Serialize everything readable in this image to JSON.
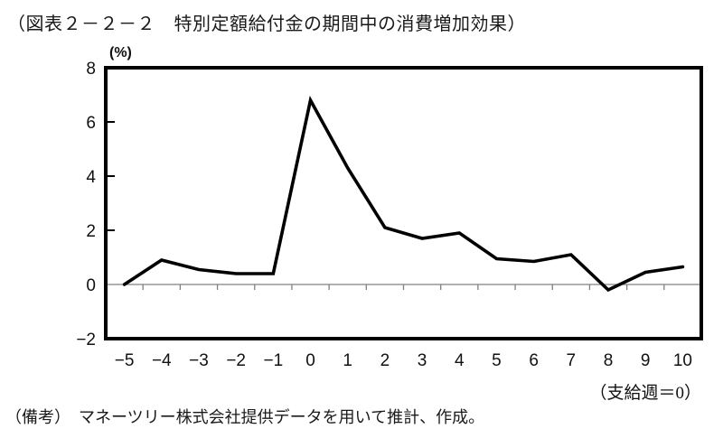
{
  "figure": {
    "title": "（図表２－２－２　特別定額給付金の期間中の消費増加効果）",
    "source_note": "（備考）　マネーツリー株式会社提供データを用いて推計、作成。"
  },
  "chart_data": {
    "type": "line",
    "title": "特別定額給付金の期間中の消費増加効果",
    "unit_label": "(%)",
    "x_axis_note": "（支給週＝0）",
    "x": [
      -5,
      -4,
      -3,
      -2,
      -1,
      0,
      1,
      2,
      3,
      4,
      5,
      6,
      7,
      8,
      9,
      10
    ],
    "values": [
      0.0,
      0.9,
      0.55,
      0.4,
      0.4,
      6.8,
      4.3,
      2.1,
      1.7,
      1.9,
      0.95,
      0.85,
      1.1,
      -0.2,
      0.45,
      0.65
    ],
    "ylim": [
      -2,
      8
    ],
    "y_ticks": [
      8,
      6,
      4,
      2,
      0,
      -2
    ],
    "grid": "zero-line-only",
    "legend": "none",
    "line_color": "#000000",
    "frame_color": "#000000",
    "zero_line_color": "#808080"
  }
}
